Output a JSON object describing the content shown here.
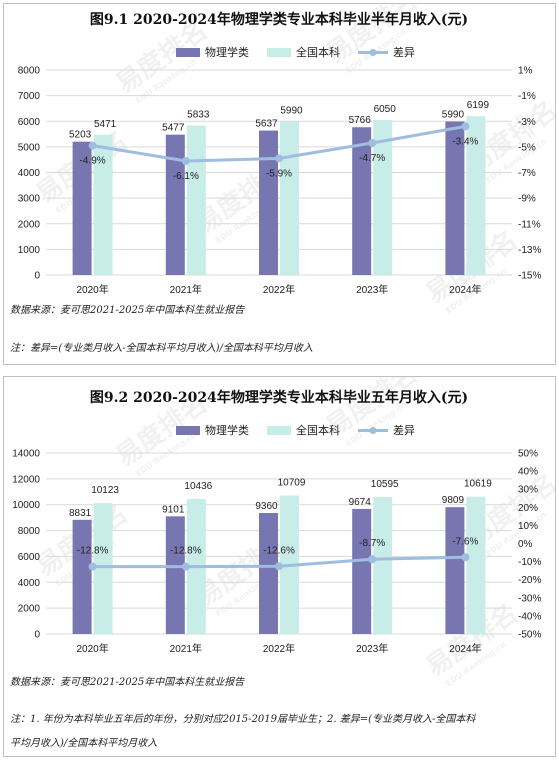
{
  "colors": {
    "prof": "#7876b1",
    "national": "#c8ece8",
    "diff": "#9ebde0",
    "grid": "#d9d9d9"
  },
  "watermark": {
    "brand": "易度排名",
    "sub": "EDU Ranking.cn"
  },
  "chart_data": [
    {
      "type": "bar",
      "title": "图9.1 2020-2024年物理学类专业本科毕业半年月收入(元)",
      "categories": [
        "2020年",
        "2021年",
        "2022年",
        "2023年",
        "2024年"
      ],
      "series": [
        {
          "name": "物理学类",
          "values": [
            5203,
            5477,
            5637,
            5766,
            5990
          ]
        },
        {
          "name": "全国本科",
          "values": [
            5471,
            5833,
            5990,
            6050,
            6199
          ]
        }
      ],
      "line_series": {
        "name": "差异",
        "values": [
          -4.9,
          -6.1,
          -5.9,
          -4.7,
          -3.4
        ],
        "labels": [
          "-4.9%",
          "-6.1%",
          "-5.9%",
          "-4.7%",
          "-3.4%"
        ]
      },
      "ylim": [
        0,
        8000
      ],
      "yticks": [
        "0",
        "1000",
        "2000",
        "3000",
        "4000",
        "5000",
        "6000",
        "7000",
        "8000"
      ],
      "y2lim": [
        -15,
        1
      ],
      "y2ticks": [
        "1%",
        "-1%",
        "-3%",
        "-5%",
        "-7%",
        "-9%",
        "-11%",
        "-13%",
        "-15%"
      ],
      "legend": "top",
      "grid": true,
      "source": "数据来源：麦可思2021-2025年中国本科生就业报告",
      "note_lines": [
        "注：差异=(专业类月收入-全国本科平均月收入)/全国本科平均月收入"
      ]
    },
    {
      "type": "bar",
      "title": "图9.2 2020-2024年物理学类专业本科毕业五年月收入(元)",
      "categories": [
        "2020年",
        "2021年",
        "2022年",
        "2023年",
        "2024年"
      ],
      "series": [
        {
          "name": "物理学类",
          "values": [
            8831,
            9101,
            9360,
            9674,
            9809
          ]
        },
        {
          "name": "全国本科",
          "values": [
            10123,
            10436,
            10709,
            10595,
            10619
          ]
        }
      ],
      "line_series": {
        "name": "差异",
        "values": [
          -12.8,
          -12.8,
          -12.6,
          -8.7,
          -7.6
        ],
        "labels": [
          "-12.8%",
          "-12.8%",
          "-12.6%",
          "-8.7%",
          "-7.6%"
        ]
      },
      "ylim": [
        0,
        14000
      ],
      "yticks": [
        "0",
        "2000",
        "4000",
        "6000",
        "8000",
        "10000",
        "12000",
        "14000"
      ],
      "y2lim": [
        -50,
        50
      ],
      "y2ticks": [
        "50%",
        "40%",
        "30%",
        "20%",
        "10%",
        "0%",
        "-10%",
        "-20%",
        "-30%",
        "-40%",
        "-50%"
      ],
      "legend": "top",
      "grid": true,
      "source": "数据来源：麦可思2021-2025年中国本科生就业报告",
      "note_lines": [
        "注：1. 年份为本科毕业五年后的年份，分别对应2015-2019届毕业生；2. 差异=(专业类月收入-全国本科",
        "平均月收入)/全国本科平均月收入"
      ]
    }
  ]
}
